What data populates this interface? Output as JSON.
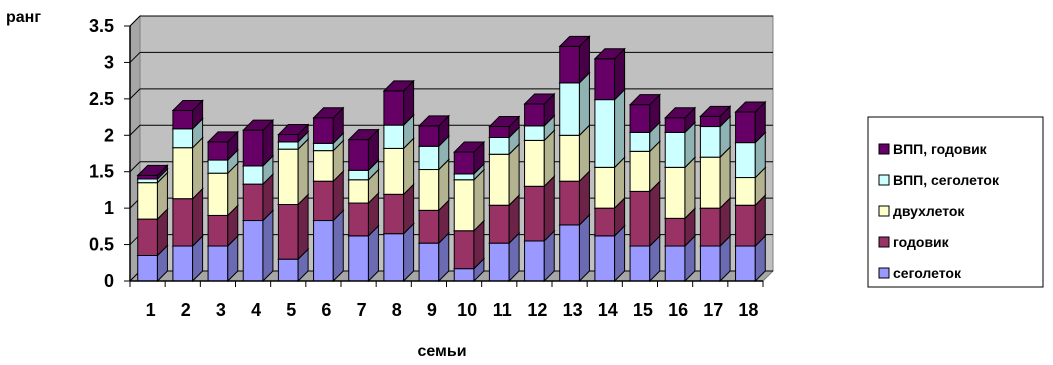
{
  "chart_data": {
    "type": "bar",
    "stacked": true,
    "three_d": true,
    "categories": [
      "1",
      "2",
      "3",
      "4",
      "5",
      "6",
      "7",
      "8",
      "9",
      "10",
      "11",
      "12",
      "13",
      "14",
      "15",
      "16",
      "17",
      "18"
    ],
    "ylabel": "ранг",
    "xlabel": "семьи",
    "ylim": [
      0,
      3.5
    ],
    "yticks": [
      "0",
      "0.5",
      "1",
      "1.5",
      "2",
      "2.5",
      "3",
      "3.5"
    ],
    "ytick_values": [
      0,
      0.5,
      1,
      1.5,
      2,
      2.5,
      3,
      3.5
    ],
    "grid": true,
    "legend_position": "right",
    "series": [
      {
        "name": "сеголеток",
        "color": "#9999ff",
        "values": [
          0.35,
          0.48,
          0.48,
          0.83,
          0.3,
          0.83,
          0.62,
          0.65,
          0.52,
          0.17,
          0.52,
          0.55,
          0.77,
          0.62,
          0.48,
          0.48,
          0.48,
          0.48
        ]
      },
      {
        "name": "годовик",
        "color": "#993366",
        "values": [
          0.5,
          0.65,
          0.42,
          0.5,
          0.75,
          0.54,
          0.45,
          0.54,
          0.45,
          0.52,
          0.52,
          0.75,
          0.6,
          0.38,
          0.75,
          0.38,
          0.52,
          0.56
        ]
      },
      {
        "name": "двухлеток",
        "color": "#ffffcc",
        "values": [
          0.5,
          0.7,
          0.58,
          0.0,
          0.76,
          0.42,
          0.32,
          0.63,
          0.56,
          0.7,
          0.7,
          0.63,
          0.63,
          0.56,
          0.55,
          0.7,
          0.7,
          0.38
        ]
      },
      {
        "name": "ВПП, сеголеток",
        "color": "#ccffff",
        "values": [
          0.05,
          0.26,
          0.18,
          0.25,
          0.1,
          0.1,
          0.13,
          0.32,
          0.32,
          0.08,
          0.23,
          0.2,
          0.72,
          0.93,
          0.26,
          0.48,
          0.42,
          0.48
        ]
      },
      {
        "name": "ВПП, годовик",
        "color": "#660066",
        "values": [
          0.05,
          0.25,
          0.25,
          0.49,
          0.1,
          0.35,
          0.42,
          0.47,
          0.28,
          0.3,
          0.15,
          0.3,
          0.5,
          0.56,
          0.38,
          0.2,
          0.14,
          0.42
        ]
      }
    ]
  }
}
